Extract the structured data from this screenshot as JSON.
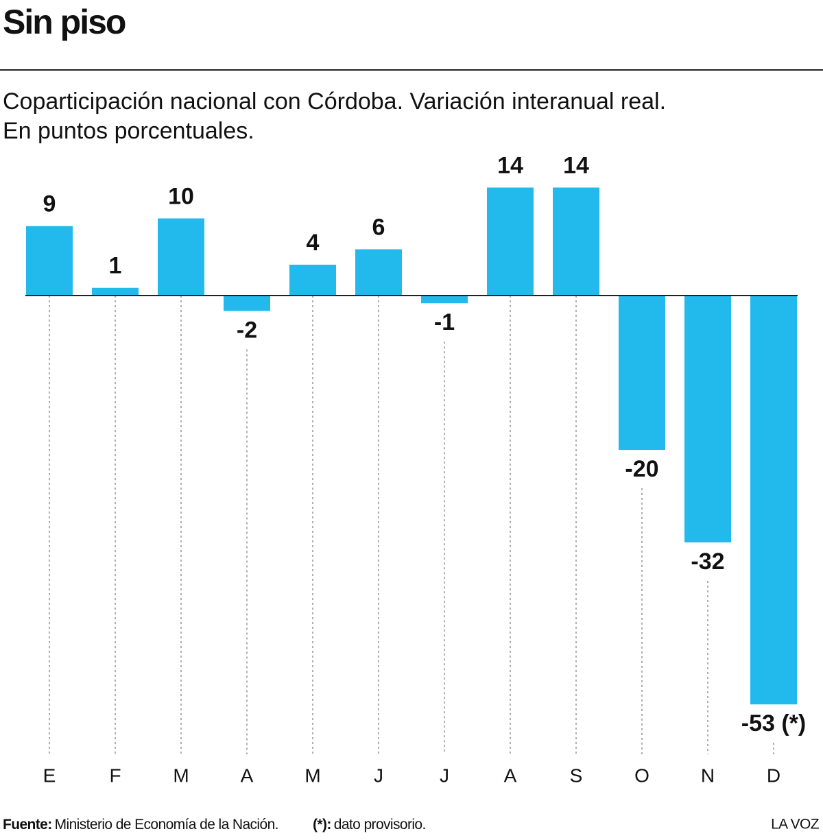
{
  "chart_data": {
    "type": "bar",
    "title": "Sin piso",
    "subtitle": [
      "Coparticipación nacional con Córdoba. Variación interanual real.",
      "En puntos porcentuales."
    ],
    "categories": [
      "E",
      "F",
      "M",
      "A",
      "M",
      "J",
      "J",
      "A",
      "S",
      "O",
      "N",
      "D"
    ],
    "values": [
      9,
      1,
      10,
      -2,
      4,
      6,
      -1,
      14,
      14,
      -20,
      -32,
      -53
    ],
    "value_labels": [
      "9",
      "1",
      "10",
      "-2",
      "4",
      "6",
      "-1",
      "14",
      "14",
      "-20",
      "-32",
      "-53 (*)"
    ],
    "color": "#22b9ed",
    "source_label": "Fuente:",
    "source": "Ministerio de Economía de la Nación.",
    "note_label": "(*):",
    "note": "dato provisorio.",
    "credit": "LA VOZ"
  }
}
